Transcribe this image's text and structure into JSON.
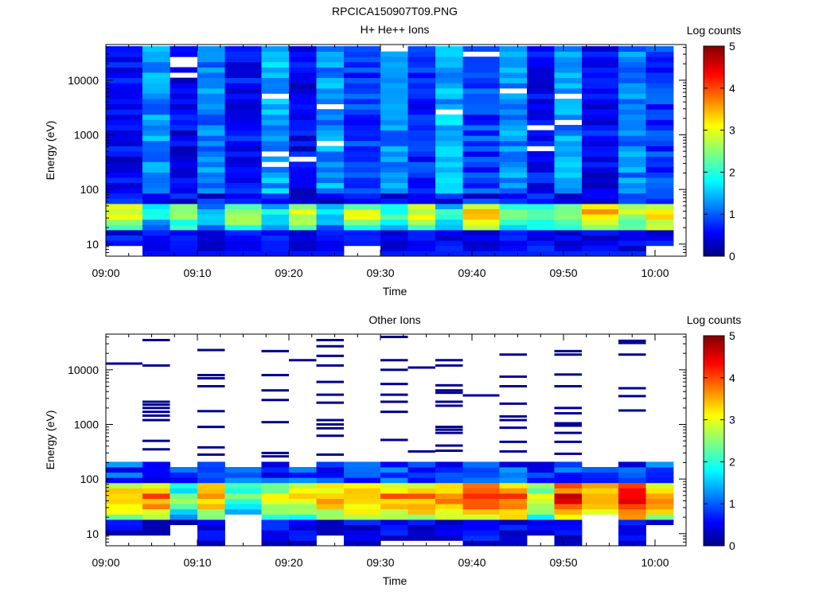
{
  "figure": {
    "title": "RPCICA150907T09.PNG"
  },
  "chart_data": [
    {
      "type": "heatmap",
      "title": "H+ He++ Ions",
      "xlabel": "Time",
      "ylabel": "Energy (eV)",
      "x_ticks": [
        "09:00",
        "09:10",
        "09:20",
        "09:30",
        "09:40",
        "09:50",
        "10:00"
      ],
      "x_range": [
        "09:00",
        "10:02"
      ],
      "y_scale": "log",
      "y_ticks": [
        10,
        100,
        1000,
        10000
      ],
      "y_tick_labels": [
        "10",
        "100",
        "1000",
        "10000"
      ],
      "y_range": [
        6,
        45000
      ],
      "colorbar": {
        "label": "Log counts",
        "ticks": [
          "0",
          "1",
          "2",
          "3",
          "4",
          "5"
        ],
        "range": [
          0,
          5
        ]
      },
      "time_bins": [
        "09:00",
        "09:04",
        "09:07",
        "09:10",
        "09:13",
        "09:17",
        "09:20",
        "09:23",
        "09:26",
        "09:30",
        "09:33",
        "09:36",
        "09:39",
        "09:43",
        "09:46",
        "09:49",
        "09:52",
        "09:56",
        "09:59"
      ],
      "profiles": {
        "high_level": [
          0.6,
          1.35,
          0.5,
          1.25,
          0.7,
          1.45,
          0.55,
          1.35,
          0.85,
          1.3,
          0.75,
          1.5,
          0.9,
          1.35,
          0.65,
          1.35,
          0.6,
          1.3,
          0.9
        ],
        "peak_level": [
          3.2,
          2.0,
          2.7,
          1.8,
          2.9,
          1.9,
          3.0,
          1.9,
          3.0,
          2.2,
          3.1,
          2.1,
          3.5,
          2.6,
          2.5,
          2.8,
          3.5,
          2.9,
          3.5
        ],
        "min_energy_eV": [
          10,
          6,
          6,
          6,
          6,
          6,
          6,
          6,
          10,
          6,
          6,
          6,
          6,
          6,
          6,
          6,
          6,
          6,
          10
        ]
      }
    },
    {
      "type": "heatmap",
      "title": "Other Ions",
      "xlabel": "Time",
      "ylabel": "Energy (eV)",
      "x_ticks": [
        "09:00",
        "09:10",
        "09:20",
        "09:30",
        "09:40",
        "09:50",
        "10:00"
      ],
      "x_range": [
        "09:00",
        "10:02"
      ],
      "y_scale": "log",
      "y_ticks": [
        10,
        100,
        1000,
        10000
      ],
      "y_tick_labels": [
        "10",
        "100",
        "1000",
        "10000"
      ],
      "y_range": [
        6,
        45000
      ],
      "colorbar": {
        "label": "Log counts",
        "ticks": [
          "0",
          "1",
          "2",
          "3",
          "4",
          "5"
        ],
        "range": [
          0,
          5
        ]
      },
      "time_bins": [
        "09:00",
        "09:04",
        "09:07",
        "09:10",
        "09:13",
        "09:17",
        "09:20",
        "09:23",
        "09:26",
        "09:30",
        "09:33",
        "09:36",
        "09:39",
        "09:43",
        "09:46",
        "09:49",
        "09:52",
        "09:56",
        "09:59"
      ],
      "profiles": {
        "peak_level": [
          3.8,
          3.9,
          2.5,
          3.8,
          2.6,
          3.1,
          3.2,
          3.6,
          3.8,
          3.8,
          3.9,
          3.7,
          4.2,
          4.1,
          3.1,
          4.4,
          4.0,
          4.7,
          3.9
        ],
        "low_cutoff_eV": [
          9,
          9,
          14,
          6,
          24,
          6,
          6,
          10,
          6,
          7,
          7,
          7,
          6,
          6,
          9,
          6,
          25,
          6,
          14
        ],
        "band_top_eV": [
          190,
          230,
          165,
          190,
          165,
          195,
          180,
          210,
          200,
          210,
          200,
          200,
          200,
          210,
          200,
          230,
          170,
          230,
          210
        ],
        "sparse_high_energy_lines_eV": [
          [
            13000
          ],
          [
            35000,
            12000,
            2600,
            2300,
            2000,
            1700,
            1450,
            1200,
            500,
            350
          ],
          [],
          [
            23000,
            8000,
            7000,
            5000,
            1750,
            900,
            380,
            280
          ],
          [],
          [
            22000,
            8000,
            4200,
            2800,
            1100,
            300,
            260
          ],
          [
            15000
          ],
          [
            35000,
            27000,
            18000,
            12000,
            6000,
            3500,
            2500,
            1200,
            1000,
            850,
            620,
            280
          ],
          [],
          [
            40000,
            15000,
            10000,
            5500,
            3500,
            2600,
            1700,
            520
          ],
          [
            11000,
            320
          ],
          [
            15000,
            12000,
            5200,
            4200,
            3800,
            2600,
            2200,
            900,
            800,
            700,
            410,
            330
          ],
          [
            3400
          ],
          [
            19000,
            7500,
            5000,
            2400,
            1400,
            1200,
            870,
            480,
            320
          ],
          [],
          [
            22000,
            19000,
            8200,
            5000,
            2000,
            1600,
            1050,
            950,
            700,
            480,
            290
          ],
          [],
          [
            34000,
            31000,
            19000,
            4600,
            3300,
            1800
          ],
          []
        ]
      }
    }
  ]
}
